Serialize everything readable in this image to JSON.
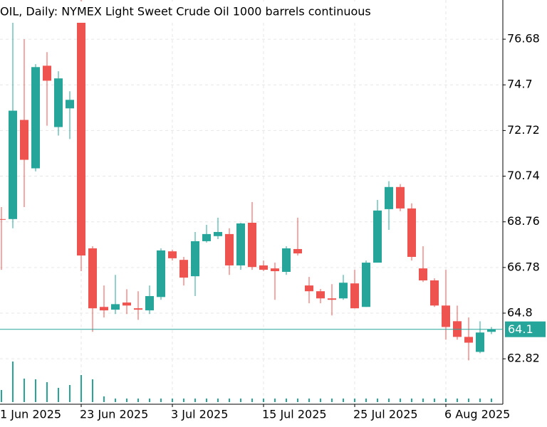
{
  "chart_data": {
    "type": "candlestick",
    "title": "OIL, Daily:  NYMEX Light Sweet Crude Oil 1000 barrels continuous",
    "up_color": "#26a69a",
    "down_color": "#ef5350",
    "volume_color": "#26a69a",
    "open": [
      68.88,
      68.88,
      73.18,
      71.08,
      75.53,
      72.87,
      73.68,
      78.07,
      67.61,
      65.07,
      64.95,
      65.26,
      65.01,
      64.92,
      65.5,
      67.48,
      67.11,
      66.4,
      67.92,
      68.14,
      68.23,
      66.87,
      68.72,
      66.87,
      66.74,
      66.59,
      67.58,
      66.0,
      65.75,
      65.44,
      65.44,
      66.09,
      65.07,
      66.99,
      69.31,
      70.27,
      69.34,
      66.74,
      66.22,
      65.13,
      64.45,
      63.77,
      63.12,
      63.99
    ],
    "high": [
      69.4,
      77.61,
      76.68,
      75.6,
      76.12,
      75.29,
      74.42,
      78.4,
      67.7,
      66.0,
      66.46,
      65.84,
      65.75,
      66.0,
      67.61,
      67.55,
      67.24,
      68.32,
      68.63,
      68.94,
      68.48,
      68.72,
      69.62,
      67.08,
      66.99,
      67.7,
      68.94,
      66.37,
      65.85,
      66.06,
      66.46,
      66.68,
      67.08,
      69.71,
      70.52,
      70.4,
      69.56,
      67.7,
      66.31,
      66.68,
      65.13,
      64.61,
      64.45,
      64.2
    ],
    "low": [
      66.68,
      68.48,
      69.4,
      70.95,
      72.93,
      72.5,
      72.35,
      66.62,
      63.99,
      64.61,
      64.76,
      64.76,
      64.51,
      64.76,
      65.38,
      67.08,
      66.0,
      65.54,
      67.86,
      68.01,
      66.46,
      66.68,
      66.68,
      66.62,
      65.38,
      66.46,
      67.3,
      65.23,
      65.23,
      64.7,
      65.38,
      65.01,
      65.07,
      66.99,
      68.41,
      69.22,
      67.08,
      66.15,
      65.07,
      63.65,
      63.65,
      62.75,
      63.06,
      63.89
    ],
    "close": [
      68.85,
      73.58,
      71.45,
      75.47,
      74.88,
      74.98,
      74.05,
      67.3,
      65.01,
      64.92,
      65.19,
      65.13,
      64.95,
      65.54,
      67.52,
      67.18,
      66.34,
      67.92,
      68.23,
      68.32,
      66.87,
      68.69,
      66.8,
      66.68,
      66.62,
      67.61,
      67.39,
      65.75,
      65.44,
      65.38,
      66.12,
      65.01,
      66.99,
      69.25,
      70.27,
      69.34,
      67.24,
      66.22,
      65.13,
      64.2,
      63.77,
      63.52,
      63.96,
      64.1
    ],
    "volumes": [
      17,
      57,
      33,
      32,
      28,
      20,
      24,
      38,
      32,
      8,
      5,
      5,
      5,
      5,
      5,
      5,
      5,
      5,
      5,
      5,
      5,
      5,
      5,
      5,
      5,
      5,
      5,
      5,
      5,
      5,
      5,
      5,
      5,
      5,
      5,
      5,
      5,
      5,
      5,
      5,
      5,
      5,
      5,
      5
    ],
    "ylim": [
      60.85,
      78.38
    ],
    "yticks": [
      62.82,
      64.8,
      66.78,
      68.76,
      70.74,
      72.72,
      74.7,
      76.68
    ],
    "xticks": [
      {
        "value": -1,
        "label": "1 Jun 2025"
      },
      {
        "value": 7,
        "label": "23 Jun 2025"
      },
      {
        "value": 15,
        "label": "3 Jul 2025"
      },
      {
        "value": 23,
        "label": "15 Jul 2025"
      },
      {
        "value": 31,
        "label": "25 Jul 2025"
      },
      {
        "value": 39,
        "label": "6 Aug 2025"
      }
    ],
    "last_price": 64.1,
    "grid": true
  }
}
